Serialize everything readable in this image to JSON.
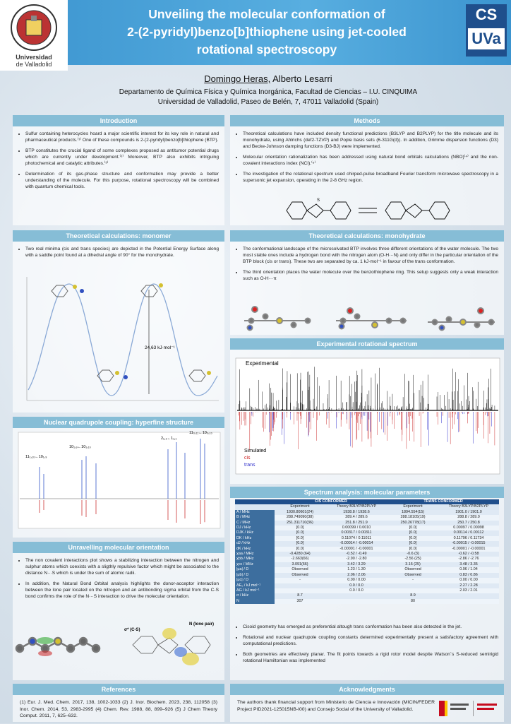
{
  "header": {
    "title": [
      "Unveiling the molecular conformation of",
      "2-(2-pyridyl)benzo[b]thiophene using jet-cooled",
      "rotational spectroscopy"
    ],
    "university": [
      "Universidad",
      "de Valladolid"
    ],
    "logo_right": [
      "CS",
      "UVa"
    ]
  },
  "authors": {
    "names": [
      "Domingo Heras,",
      "Alberto Lesarri"
    ],
    "affiliation": [
      "Departamento de Química Física y Química Inorgánica, Facultad de Ciencias – I.U. CINQUIMA",
      "Universidad de Valladolid, Paseo de Belén, 7, 47011 Valladolid (Spain)"
    ]
  },
  "introduction": {
    "heading": "Introduction",
    "bullets": [
      "Sulfur containing heterocycles hoard a major scientific interest for its key role in natural and pharmaceutical products.⁽¹⁾ One of these compounds is 2-(2-pyridyl)benzo[b]thiophene (BTP).",
      "BTP constitutes the crucial ligand of some complexes proposed as antitumor potential drugs which are currently under development.⁽²⁾ Moreover, BTP also exhibits intriguing photochemical and catalytic attributes.⁽³⁾",
      "Determination of its gas-phase structure and conformation may provide a better understanding of the molecule. For this purpose, rotational spectroscopy will be combined with quantum chemical tools."
    ]
  },
  "methods": {
    "heading": "Methods",
    "bullets": [
      "Theoretical calculations have included density functional predictions (B3LYP and B2PLYP) for the title molecule and its monohydrate, using Ahlrichs (def2-TZVP) and Pople basis sets (6-311G(d)). In addition, Grimme dispersion functions (D3) and Becke-Johnson damping functions (D3-BJ) were implemented.",
      "Molecular orientation rationalization has been addressed using natural bond orbitals calculations (NBO)⁽⁴⁾ and the non-covalent interactions index (NCI).⁽⁵⁾",
      "The investigation of the rotational spectrum used chirped-pulse broadband Fourier transform microwave spectroscopy in a supersonic jet expansion, operating in the 2-8 GHz region."
    ]
  },
  "monomer": {
    "heading": "Theoretical calculations: monomer",
    "bullets": [
      "Two real minima (cis and trans species) are depicted in the Potential Energy Surface along with a saddle point found at a dihedral angle of 90° for the monohydrate."
    ],
    "energy_label": "24,63 kJ·mol⁻¹"
  },
  "monohydrate": {
    "heading": "Theoretical calculations: monohydrate",
    "bullets": [
      "The conformational landscape of the microsolvated BTP involves three different orientations of the water molecule. The two most stable ones include a hydrogen bond with the nitrogen atom (O-H···N) and only differ in the particular orientation of the BTP block (cis or trans). These two are separated by ca. 1 kJ·mol⁻¹ in favour of the trans conformation.",
      "The third orientation places the water molecule over the benzothiophene ring. This setup suggests only a weak interaction such as O-H···π"
    ]
  },
  "spectrum": {
    "heading": "Experimental rotational spectrum",
    "experimental": "Experimental",
    "simulated": "Simulated",
    "cis": "cis",
    "trans": "trans"
  },
  "quadrupole": {
    "heading": "Nuclear quadrupole coupling: hyperfine structure",
    "transitions": [
      "11₁,₁₀←10₁,₉",
      "10₁,₉←10₁,₁₀",
      "2₁,₂←1₁,₁",
      "11₀,₁₁←10₀,₁₀"
    ]
  },
  "orientation": {
    "heading": "Unravelling molecular orientation",
    "bullets": [
      "The non covalent interactions plot shows a stabilizing interaction between the nitrogen and sulphur atoms which coexists with a sligthly repulsive factor which might be associated to the distance N···S which is under the sum of atomic radii.",
      "In addition, the Natural Bond Orbital analysis highlights the donor-acceptor interaction between the lone pair located on the nitrogen and an antibonding sigma orbital from the C-S bond confirms the role of the N···S interaction to drive the molecular orientation."
    ],
    "orbital_labels": [
      "σ* (C-S)",
      "N (lone pair)"
    ]
  },
  "analysis": {
    "heading": "Spectrum analysis: molecular parameters",
    "table": {
      "groups": [
        "CIS CONFORMER",
        "TRANS CONFORMER"
      ],
      "columns": [
        "Experiment",
        "Theory B3LYP/B2PLYP",
        "Experiment",
        "Theory B3LYP/B2PLYP"
      ],
      "rows": [
        [
          "A / MHz",
          "1930.80601(24)",
          "1938.8 / 1938.6",
          "1894.554(15)",
          "1901.0 / 1901.0"
        ],
        [
          "B / MHz",
          "288.749090(38)",
          "289.4 / 289.6",
          "288.18105(19)",
          "288.8 / 289.0"
        ],
        [
          "C / MHz",
          "251.311710(36)",
          "251.8 / 251.9",
          "250.26778(17)",
          "250.7 / 250.8"
        ],
        [
          "DJ / kHz",
          "[0.0]",
          "0.00099 / 0.0010",
          "[0.0]",
          "0.00097 / 0.00098"
        ],
        [
          "DJK / kHz",
          "[0.0]",
          "0.00317 / 0.00311",
          "[0.0]",
          "0.00114 / 0.00112"
        ],
        [
          "DK / kHz",
          "[0.0]",
          "0.11074 / 0.11011",
          "[0.0]",
          "0.11796 / 0.11734"
        ],
        [
          "dJ / kHz",
          "[0.0]",
          "-0.00014 / -0.00014",
          "[0.0]",
          "-0.00015 / -0.00015"
        ],
        [
          "dK / kHz",
          "[0.0]",
          "-0.00001 / -0.00001",
          "[0.0]",
          "-0.00001 / -0.00001"
        ],
        [
          "χaa / MHz",
          "-0.4280 (64)",
          "-0.52 / -0.49",
          "-0.6 (3)",
          "-0.62 / -0.58"
        ],
        [
          "χbb / MHz",
          "-2.663(66)",
          "-2.90 / -2.80",
          "-2.56 (25)",
          "-2.86 / -2.76"
        ],
        [
          "χcc / MHz",
          "3.091(66)",
          "3.42 / 3.29",
          "3.16 (25)",
          "3.48 / 3.35"
        ],
        [
          "|μa| / D",
          "Observed",
          "1.23 / 1.30",
          "Observed",
          "0.96 / 1.04"
        ],
        [
          "|μb| / D",
          "Observed",
          "2.06 / 2.06",
          "Observed",
          "0.83 / 0.86"
        ],
        [
          "|μc| / D",
          "-",
          "0.00 / 0.00",
          "-",
          "0.00 / 0.00"
        ],
        [
          "ΔE₀ / kJ mol⁻¹",
          null,
          "0.0 / 0.0",
          null,
          "2.27 / 2.28"
        ],
        [
          "ΔG / kJ mol⁻¹",
          null,
          "0.0 / 0.0",
          null,
          "2.03 / 2.01"
        ],
        [
          "σ / kHz",
          "8.7",
          null,
          "8.9",
          null
        ],
        [
          "N",
          "307",
          null,
          "80",
          null
        ]
      ]
    },
    "bullets": [
      "Cisoid geometry has emerged as preferential altough trans conformation has been also detected in the jet.",
      "Rotational and nuclear quadrupole coupling constants determined experimentally present a satisfactory agreement with computational predictions.",
      "Both geometries are effectively planar. The fit points towards a rigid rotor model despite Watson´s S-reduced semirigid rotational Hamiltonian was implemented"
    ]
  },
  "references": {
    "heading": "References",
    "text": "(1) Eur. J. Med. Chem. 2017, 138, 1002-1033 (2) J. Inor. Biochem. 2023, 238, 112058 (3) Inor. Chem. 2014, 53, 2983-2995 (4) Chem. Rev. 1988, 88, 899–926 (5) J Chem Theory Comput. 2011, 7, 625–632."
  },
  "acknowledgments": {
    "heading": "Acknowledgments",
    "text": "The authors thank financial support from Ministerio de Ciencia e Innovación (MICIN/FEDER Project PID2021-125015NB-I00) and Consejo Social of the University of Valladolid."
  }
}
